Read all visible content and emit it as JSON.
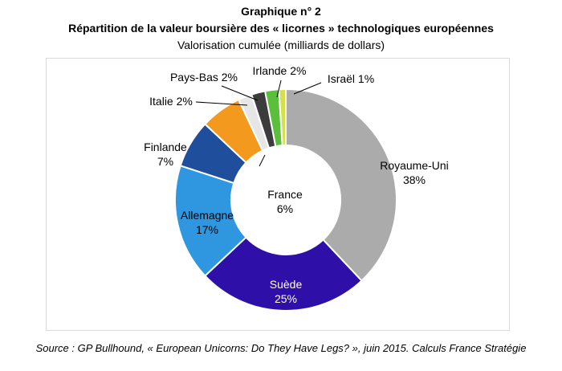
{
  "header": {
    "title_line1": "Graphique n° 2",
    "title_line2": "Répartition de la valeur boursière des « licornes » technologiques européennes",
    "subtitle": "Valorisation cumulée (milliards de dollars)"
  },
  "source": "Source : GP Bullhound, « European Unicorns: Do They Have Legs? », juin 2015. Calculs France Stratégie",
  "chart_data": {
    "type": "pie",
    "donut": true,
    "title": "Répartition de la valeur boursière des « licornes » technologiques européennes",
    "subtitle": "Valorisation cumulée (milliards de dollars)",
    "legend": "none",
    "slices": [
      {
        "label": "Royaume-Uni",
        "value": 38,
        "pct_label": "38%",
        "color": "#ababab",
        "text_color": "#000000"
      },
      {
        "label": "Suède",
        "value": 25,
        "pct_label": "25%",
        "color": "#2e0fa8",
        "text_color": "#ffffff"
      },
      {
        "label": "Allemagne",
        "value": 17,
        "pct_label": "17%",
        "color": "#2e97e0",
        "text_color": "#000000"
      },
      {
        "label": "Finlande",
        "value": 7,
        "pct_label": "7%",
        "color": "#1f4e9c",
        "text_color": "#000000"
      },
      {
        "label": "France",
        "value": 6,
        "pct_label": "6%",
        "color": "#f39a1e",
        "text_color": "#000000"
      },
      {
        "label": "Italie",
        "value": 2,
        "pct_label": "2%",
        "color": "#e6e6e6",
        "text_color": "#000000"
      },
      {
        "label": "Pays-Bas",
        "value": 2,
        "pct_label": "2%",
        "color": "#3c3c3c",
        "text_color": "#000000"
      },
      {
        "label": "Irlande",
        "value": 2,
        "pct_label": "2%",
        "color": "#5cbf3c",
        "text_color": "#000000"
      },
      {
        "label": "Israël",
        "value": 1,
        "pct_label": "1%",
        "color": "#d6e04a",
        "text_color": "#000000"
      }
    ]
  }
}
